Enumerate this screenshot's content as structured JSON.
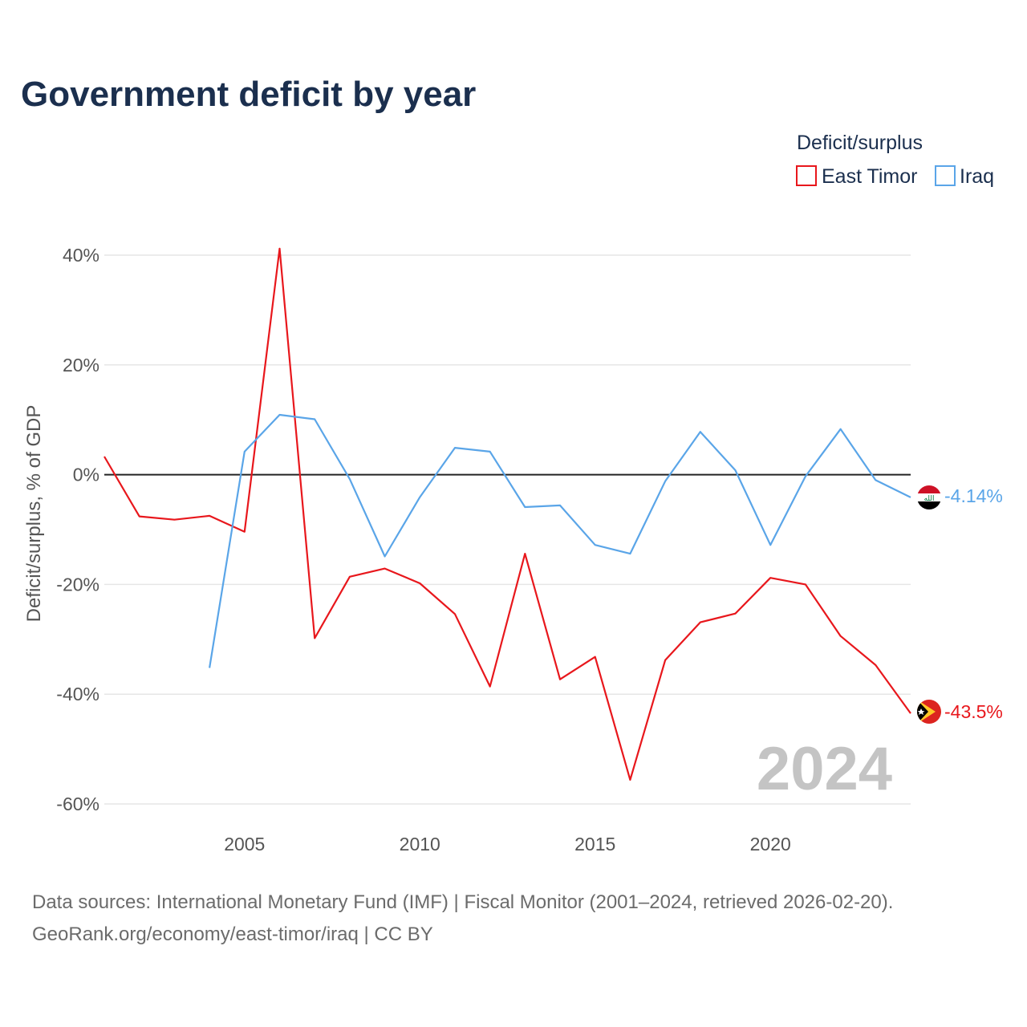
{
  "chart_data": {
    "type": "line",
    "title": "Government deficit by year",
    "legend_title": "Deficit/surplus",
    "legend_position": "top-right",
    "ylabel": "Deficit/surplus, % of GDP",
    "xlabel": "",
    "xlim": [
      2001,
      2024
    ],
    "ylim": [
      -60,
      40
    ],
    "x_ticks": [
      2005,
      2010,
      2015,
      2020
    ],
    "x_tick_labels": [
      "2005",
      "2010",
      "2015",
      "2020"
    ],
    "y_ticks": [
      40,
      20,
      0,
      -20,
      -40,
      -60
    ],
    "y_tick_labels": [
      "40%",
      "20%",
      "0%",
      "-20%",
      "-40%",
      "-60%"
    ],
    "grid": true,
    "watermark_year": "2024",
    "series": [
      {
        "name": "East Timor",
        "color": "#e8171c",
        "flag_icon": "east-timor-flag-icon",
        "end_label": "-43.5%",
        "points": [
          [
            2001,
            3.3
          ],
          [
            2002,
            -7.6
          ],
          [
            2003,
            -8.2
          ],
          [
            2004,
            -7.5
          ],
          [
            2005,
            -10.4
          ],
          [
            2006,
            41.2
          ],
          [
            2007,
            -29.8
          ],
          [
            2008,
            -18.6
          ],
          [
            2009,
            -17.1
          ],
          [
            2010,
            -19.8
          ],
          [
            2011,
            -25.4
          ],
          [
            2012,
            -38.6
          ],
          [
            2013,
            -14.4
          ],
          [
            2014,
            -37.3
          ],
          [
            2015,
            -33.2
          ],
          [
            2016,
            -55.6
          ],
          [
            2017,
            -33.8
          ],
          [
            2018,
            -26.9
          ],
          [
            2019,
            -25.3
          ],
          [
            2020,
            -18.8
          ],
          [
            2021,
            -20.0
          ],
          [
            2022,
            -29.4
          ],
          [
            2023,
            -34.7
          ],
          [
            2024,
            -43.5
          ]
        ]
      },
      {
        "name": "Iraq",
        "color": "#5aa5e8",
        "flag_icon": "iraq-flag-icon",
        "end_label": "-4.14%",
        "points": [
          [
            2004,
            -35.2
          ],
          [
            2005,
            4.2
          ],
          [
            2006,
            10.9
          ],
          [
            2007,
            10.1
          ],
          [
            2008,
            -0.8
          ],
          [
            2009,
            -14.9
          ],
          [
            2010,
            -4.1
          ],
          [
            2011,
            4.9
          ],
          [
            2012,
            4.2
          ],
          [
            2013,
            -5.9
          ],
          [
            2014,
            -5.6
          ],
          [
            2015,
            -12.8
          ],
          [
            2016,
            -14.4
          ],
          [
            2017,
            -1.2
          ],
          [
            2018,
            7.8
          ],
          [
            2019,
            0.8
          ],
          [
            2020,
            -12.8
          ],
          [
            2021,
            -0.3
          ],
          [
            2022,
            8.3
          ],
          [
            2023,
            -1.0
          ],
          [
            2024,
            -4.14
          ]
        ]
      }
    ]
  },
  "source": {
    "line1": "Data sources: International Monetary Fund (IMF) | Fiscal Monitor (2001–2024, retrieved 2026-02-20).",
    "line2": "GeoRank.org/economy/east-timor/iraq | CC BY"
  }
}
